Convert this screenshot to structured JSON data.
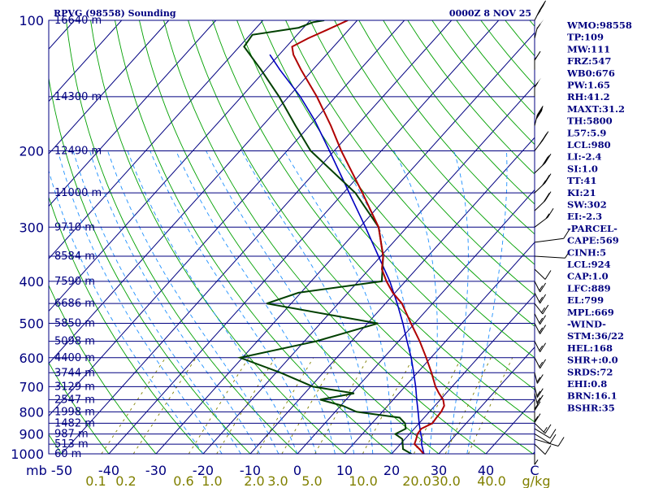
{
  "title": "RPVG (98558) Sounding",
  "valid_time": "0000Z  8 NOV 25",
  "colors": {
    "axis": "#000080",
    "isobar": "#000080",
    "isotherm": "#000080",
    "dry_adiabat": "#00a000",
    "moist_adiabat": "#1e90ff",
    "mixing_ratio": "#808000",
    "temperature": "#b00000",
    "dewpoint": "#004000",
    "parcel": "#0000c0"
  },
  "chart_data": {
    "type": "skew-t sounding",
    "pressure_axis": {
      "unit": "mb",
      "labels": [
        "100",
        "200",
        "300",
        "400",
        "500",
        "600",
        "700",
        "800",
        "900",
        "1000"
      ],
      "values": [
        100,
        200,
        300,
        400,
        500,
        600,
        700,
        800,
        900,
        1000
      ]
    },
    "temperature_axis": {
      "unit": "C",
      "labels": [
        "-50",
        "-40",
        "-30",
        "-20",
        "-10",
        "0",
        "10",
        "20",
        "30",
        "40",
        "C"
      ],
      "values": [
        -50,
        -40,
        -30,
        -20,
        -10,
        0,
        10,
        20,
        30,
        40
      ]
    },
    "mixing_ratio_axis": {
      "unit": "g/kg",
      "labels": [
        "0.1",
        "0.2",
        "0.6",
        "1.0",
        "2.0",
        "3.0",
        "5.0",
        "10.0",
        "20.0",
        "30.0",
        "40.0",
        "g/kg"
      ]
    },
    "height_labels": [
      {
        "p": 100,
        "text": "16640 m"
      },
      {
        "p": 150,
        "text": "14300 m"
      },
      {
        "p": 200,
        "text": "12490 m"
      },
      {
        "p": 250,
        "text": "11000 m"
      },
      {
        "p": 300,
        "text": "9710 m"
      },
      {
        "p": 350,
        "text": "8584 m"
      },
      {
        "p": 400,
        "text": "7590 m"
      },
      {
        "p": 450,
        "text": "6686 m"
      },
      {
        "p": 500,
        "text": "5850 m"
      },
      {
        "p": 550,
        "text": "5098 m"
      },
      {
        "p": 600,
        "text": "4400 m"
      },
      {
        "p": 650,
        "text": "3744 m"
      },
      {
        "p": 700,
        "text": "3129 m"
      },
      {
        "p": 750,
        "text": "2547 m"
      },
      {
        "p": 800,
        "text": "1998 m"
      },
      {
        "p": 850,
        "text": "1482 m"
      },
      {
        "p": 900,
        "text": "987 m"
      },
      {
        "p": 950,
        "text": "513 m"
      },
      {
        "p": 1000,
        "text": "60 m"
      }
    ],
    "temperature_profile": [
      {
        "p": 1003,
        "t": 27.0
      },
      {
        "p": 975,
        "t": 25.0
      },
      {
        "p": 950,
        "t": 23.0
      },
      {
        "p": 925,
        "t": 22.4
      },
      {
        "p": 900,
        "t": 21.7
      },
      {
        "p": 875,
        "t": 21.5
      },
      {
        "p": 850,
        "t": 22.8
      },
      {
        "p": 825,
        "t": 22.6
      },
      {
        "p": 800,
        "t": 22.5
      },
      {
        "p": 775,
        "t": 22.0
      },
      {
        "p": 750,
        "t": 20.6
      },
      {
        "p": 725,
        "t": 18.5
      },
      {
        "p": 700,
        "t": 16.5
      },
      {
        "p": 650,
        "t": 13.0
      },
      {
        "p": 600,
        "t": 9.0
      },
      {
        "p": 550,
        "t": 4.5
      },
      {
        "p": 500,
        "t": -0.8
      },
      {
        "p": 450,
        "t": -6.5
      },
      {
        "p": 425,
        "t": -10.5
      },
      {
        "p": 400,
        "t": -14.0
      },
      {
        "p": 375,
        "t": -17.3
      },
      {
        "p": 350,
        "t": -19.5
      },
      {
        "p": 300,
        "t": -26.0
      },
      {
        "p": 250,
        "t": -36.0
      },
      {
        "p": 200,
        "t": -48.5
      },
      {
        "p": 175,
        "t": -55.5
      },
      {
        "p": 150,
        "t": -64.0
      },
      {
        "p": 130,
        "t": -72.5
      },
      {
        "p": 120,
        "t": -77.0
      },
      {
        "p": 115,
        "t": -78.8
      },
      {
        "p": 110,
        "t": -77.0
      },
      {
        "p": 105,
        "t": -74.5
      },
      {
        "p": 100,
        "t": -72.0
      }
    ],
    "dewpoint_profile": [
      {
        "p": 1003,
        "t": 24.5
      },
      {
        "p": 975,
        "t": 21.5
      },
      {
        "p": 950,
        "t": 20.5
      },
      {
        "p": 925,
        "t": 19.5
      },
      {
        "p": 900,
        "t": 17.0
      },
      {
        "p": 875,
        "t": 18.2
      },
      {
        "p": 850,
        "t": 17.0
      },
      {
        "p": 825,
        "t": 14.8
      },
      {
        "p": 800,
        "t": 4.5
      },
      {
        "p": 775,
        "t": 0.5
      },
      {
        "p": 750,
        "t": -5.5
      },
      {
        "p": 725,
        "t": 0.5
      },
      {
        "p": 700,
        "t": -9.5
      },
      {
        "p": 650,
        "t": -19.0
      },
      {
        "p": 600,
        "t": -30.5
      },
      {
        "p": 550,
        "t": -17.5
      },
      {
        "p": 500,
        "t": -7.8
      },
      {
        "p": 450,
        "t": -35.2
      },
      {
        "p": 425,
        "t": -30.5
      },
      {
        "p": 400,
        "t": -15.0
      },
      {
        "p": 350,
        "t": -19.5
      },
      {
        "p": 300,
        "t": -26.0
      },
      {
        "p": 250,
        "t": -37.5
      },
      {
        "p": 200,
        "t": -55.0
      },
      {
        "p": 175,
        "t": -63.0
      },
      {
        "p": 150,
        "t": -72.0
      },
      {
        "p": 130,
        "t": -81.0
      },
      {
        "p": 115,
        "t": -89.0
      },
      {
        "p": 108,
        "t": -89.5
      },
      {
        "p": 104,
        "t": -81.0
      },
      {
        "p": 101,
        "t": -79.0
      },
      {
        "p": 100,
        "t": -77.0
      }
    ],
    "parcel_profile": [
      {
        "p": 1003,
        "t": 27.0
      },
      {
        "p": 950,
        "t": 24.5
      },
      {
        "p": 924,
        "t": 23.6
      },
      {
        "p": 900,
        "t": 22.4
      },
      {
        "p": 850,
        "t": 20.0
      },
      {
        "p": 800,
        "t": 17.6
      },
      {
        "p": 750,
        "t": 15.0
      },
      {
        "p": 700,
        "t": 12.3
      },
      {
        "p": 650,
        "t": 9.2
      },
      {
        "p": 600,
        "t": 5.8
      },
      {
        "p": 550,
        "t": 1.8
      },
      {
        "p": 500,
        "t": -2.5
      },
      {
        "p": 450,
        "t": -7.5
      },
      {
        "p": 400,
        "t": -13.3
      },
      {
        "p": 350,
        "t": -20.5
      },
      {
        "p": 300,
        "t": -28.8
      },
      {
        "p": 250,
        "t": -38.8
      },
      {
        "p": 200,
        "t": -51.0
      },
      {
        "p": 170,
        "t": -60.0
      },
      {
        "p": 150,
        "t": -67.5
      },
      {
        "p": 130,
        "t": -77.0
      },
      {
        "p": 120,
        "t": -82.0
      }
    ],
    "wind_barbs": [
      {
        "p": 100,
        "dir": 260,
        "spd": 45
      },
      {
        "p": 110,
        "dir": 265,
        "spd": 55
      },
      {
        "p": 130,
        "dir": 270,
        "spd": 60
      },
      {
        "p": 150,
        "dir": 270,
        "spd": 55
      },
      {
        "p": 175,
        "dir": 265,
        "spd": 40
      },
      {
        "p": 200,
        "dir": 255,
        "spd": 35
      },
      {
        "p": 225,
        "dir": 250,
        "spd": 30
      },
      {
        "p": 250,
        "dir": 250,
        "spd": 25
      },
      {
        "p": 275,
        "dir": 250,
        "spd": 20
      },
      {
        "p": 300,
        "dir": 245,
        "spd": 15
      },
      {
        "p": 325,
        "dir": 200,
        "spd": 10
      },
      {
        "p": 350,
        "dir": 170,
        "spd": 5
      },
      {
        "p": 375,
        "dir": 110,
        "spd": 10
      },
      {
        "p": 400,
        "dir": 100,
        "spd": 15
      },
      {
        "p": 425,
        "dir": 100,
        "spd": 15
      },
      {
        "p": 450,
        "dir": 105,
        "spd": 15
      },
      {
        "p": 475,
        "dir": 100,
        "spd": 15
      },
      {
        "p": 500,
        "dir": 100,
        "spd": 15
      },
      {
        "p": 550,
        "dir": 100,
        "spd": 15
      },
      {
        "p": 600,
        "dir": 100,
        "spd": 15
      },
      {
        "p": 650,
        "dir": 95,
        "spd": 15
      },
      {
        "p": 700,
        "dir": 95,
        "spd": 15
      },
      {
        "p": 725,
        "dir": 95,
        "spd": 15
      },
      {
        "p": 750,
        "dir": 90,
        "spd": 15
      },
      {
        "p": 800,
        "dir": 90,
        "spd": 15
      },
      {
        "p": 850,
        "dir": 110,
        "spd": 15
      },
      {
        "p": 875,
        "dir": 120,
        "spd": 10
      },
      {
        "p": 900,
        "dir": 120,
        "spd": 10
      },
      {
        "p": 925,
        "dir": 140,
        "spd": 10
      },
      {
        "p": 950,
        "dir": 110,
        "spd": 10
      },
      {
        "p": 1000,
        "dir": 90,
        "spd": 5
      }
    ]
  },
  "indices": [
    "WMO:98558",
    "TP:109",
    "MW:111",
    "FRZ:547",
    "WB0:676",
    "PW:1.65",
    "RH:41.2",
    "MAXT:31.2",
    "TH:5800",
    "L57:5.9",
    "LCL:980",
    "LI:-2.4",
    "SI:1.0",
    "TT:41",
    "KI:21",
    "SW:302",
    "EI:-2.3",
    "-PARCEL-",
    "CAPE:569",
    "CINH:5",
    "LCL:924",
    "CAP:1.0",
    "LFC:889",
    "EL:799",
    "MPL:669",
    "-WIND-",
    "STM:36/22",
    "HEL:168",
    "SHR+:0.0",
    "SRDS:72",
    "EHI:0.8",
    "BRN:16.1",
    "BSHR:35"
  ]
}
